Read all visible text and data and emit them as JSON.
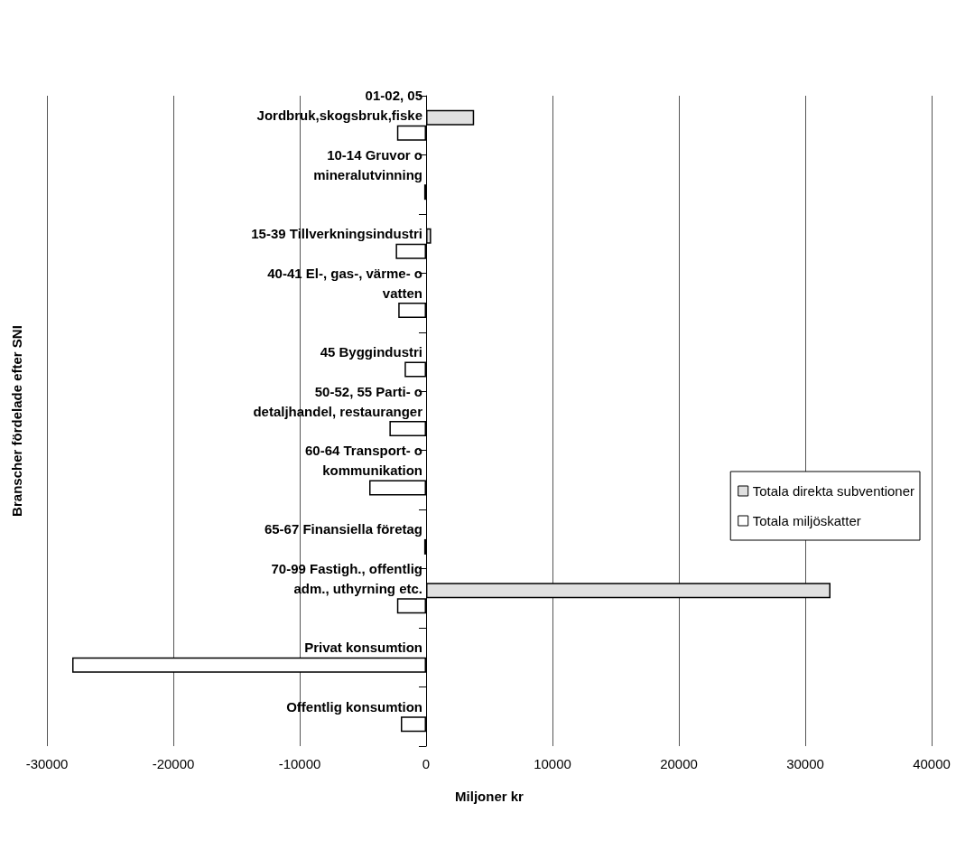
{
  "chart_data": {
    "type": "bar",
    "orientation": "horizontal",
    "xlabel": "Miljoner kr",
    "ylabel": "Branscher fördelade efter SNI",
    "categories": [
      "01-02, 05\nJordbruk,skogsbruk,fiske",
      "10-14 Gruvor o\nmineralutvinning",
      "15-39 Tillverkningsindustri",
      "40-41 El-, gas-, värme- o\nvatten",
      "45 Byggindustri",
      "50-52, 55 Parti- o\ndetaljhandel, restauranger",
      "60-64 Transport- o\nkommunikation",
      "65-67 Finansiella företag",
      "70-99 Fastigh., offentlig\nadm., uthyrning etc.",
      "Privat konsumtion",
      "Offentlig konsumtion"
    ],
    "series": [
      {
        "name": "Totala direkta subventioner",
        "color": "#e0e0e0",
        "values": [
          3800,
          null,
          400,
          null,
          null,
          null,
          null,
          null,
          32000,
          null,
          null
        ]
      },
      {
        "name": "Totala miljöskatter",
        "color": "#ffffff",
        "values": [
          -2300,
          -150,
          -2400,
          -2200,
          -1700,
          -2900,
          -4500,
          -150,
          -2300,
          -28000,
          -2000
        ]
      }
    ],
    "xlim": [
      -30000,
      40000
    ],
    "xticks": [
      -30000,
      -20000,
      -10000,
      0,
      10000,
      20000,
      30000,
      40000
    ],
    "grid": "x",
    "legend": "right"
  }
}
